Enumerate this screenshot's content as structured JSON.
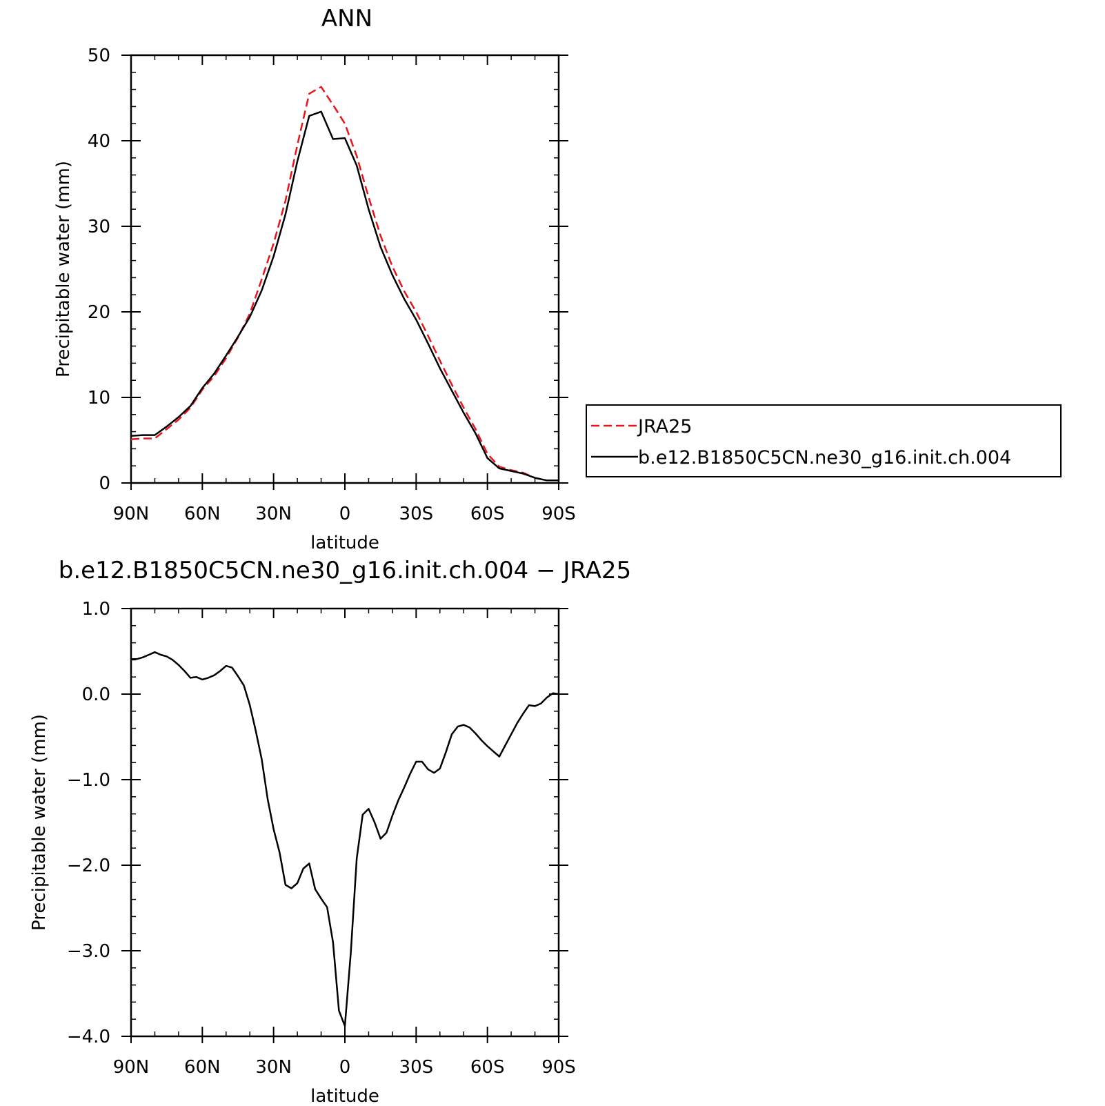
{
  "chart_data": [
    {
      "type": "line",
      "title": "ANN",
      "xlabel": "latitude",
      "ylabel": "Precipitable water (mm)",
      "xlim": [
        90,
        -90
      ],
      "ylim": [
        0,
        50
      ],
      "x_ticks": [
        90,
        60,
        30,
        0,
        -30,
        -60,
        -90
      ],
      "x_tick_labels": [
        "90N",
        "60N",
        "30N",
        "0",
        "30S",
        "60S",
        "90S"
      ],
      "y_ticks": [
        0,
        10,
        20,
        30,
        40,
        50
      ],
      "y_tick_labels": [
        "0",
        "10",
        "20",
        "30",
        "40",
        "50"
      ],
      "legend_position": "right",
      "series": [
        {
          "name": "JRA25",
          "color": "#e8141b",
          "dash": "dashed",
          "x": [
            90,
            85,
            80,
            75,
            70,
            65,
            60,
            55,
            50,
            45,
            40,
            35,
            30,
            25,
            20,
            15,
            10,
            5,
            0,
            -5,
            -10,
            -15,
            -20,
            -25,
            -30,
            -35,
            -40,
            -45,
            -50,
            -55,
            -60,
            -65,
            -70,
            -75,
            -80,
            -85,
            -90
          ],
          "values": [
            5.1,
            5.2,
            5.2,
            6.3,
            7.4,
            8.8,
            10.9,
            12.5,
            14.6,
            17.0,
            19.8,
            23.8,
            28.0,
            33.0,
            39.5,
            45.5,
            46.3,
            44.2,
            42.0,
            38.2,
            33.4,
            28.9,
            25.3,
            22.4,
            20.0,
            17.2,
            14.3,
            11.5,
            8.8,
            6.3,
            3.4,
            1.9,
            1.5,
            1.2,
            0.6,
            0.3,
            0.3
          ]
        },
        {
          "name": "b.e12.B1850C5CN.ne30_g16.init.ch.004",
          "color": "#000000",
          "dash": "solid",
          "x": [
            90,
            85,
            80,
            75,
            70,
            65,
            60,
            55,
            50,
            45,
            40,
            35,
            30,
            25,
            20,
            15,
            10,
            5,
            0,
            -5,
            -10,
            -15,
            -20,
            -25,
            -30,
            -35,
            -40,
            -45,
            -50,
            -55,
            -60,
            -65,
            -70,
            -75,
            -80,
            -85,
            -90
          ],
          "values": [
            5.5,
            5.6,
            5.6,
            6.6,
            7.7,
            9.0,
            11.1,
            12.8,
            14.9,
            17.1,
            19.4,
            22.5,
            26.5,
            31.4,
            37.6,
            42.9,
            43.4,
            40.2,
            40.3,
            37.1,
            32.0,
            27.6,
            24.3,
            21.5,
            19.1,
            16.3,
            13.4,
            10.8,
            8.2,
            5.8,
            2.9,
            1.7,
            1.4,
            1.1,
            0.6,
            0.3,
            0.3
          ]
        }
      ]
    },
    {
      "type": "line",
      "title": "b.e12.B1850C5CN.ne30_g16.init.ch.004 − JRA25",
      "xlabel": "latitude",
      "ylabel": "Precipitable water (mm)",
      "xlim": [
        90,
        -90
      ],
      "ylim": [
        -4.0,
        1.0
      ],
      "x_ticks": [
        90,
        60,
        30,
        0,
        -30,
        -60,
        -90
      ],
      "x_tick_labels": [
        "90N",
        "60N",
        "30N",
        "0",
        "30S",
        "60S",
        "90S"
      ],
      "y_ticks": [
        1.0,
        0.0,
        -1.0,
        -2.0,
        -3.0,
        -4.0
      ],
      "y_tick_labels": [
        "1.0",
        "0.0",
        "−1.0",
        "−2.0",
        "−3.0",
        "−4.0"
      ],
      "series": [
        {
          "name": "",
          "color": "#000000",
          "dash": "solid",
          "x": [
            90,
            87.5,
            85,
            82.5,
            80,
            77.5,
            75,
            72.5,
            70,
            67.5,
            65,
            62.5,
            60,
            57.5,
            55,
            52.5,
            50,
            47.5,
            45,
            42.5,
            40,
            37.5,
            35,
            32.5,
            30,
            27.5,
            25,
            22.5,
            20,
            17.5,
            15,
            12.5,
            10,
            7.5,
            5,
            2.5,
            0,
            -2.5,
            -5,
            -7.5,
            -10,
            -12.5,
            -15,
            -17.5,
            -20,
            -22.5,
            -25,
            -27.5,
            -30,
            -32.5,
            -35,
            -37.5,
            -40,
            -42.5,
            -45,
            -47.5,
            -50,
            -52.5,
            -55,
            -57.5,
            -60,
            -62.5,
            -65,
            -67.5,
            -70,
            -72.5,
            -75,
            -77.5,
            -80,
            -82.5,
            -85,
            -87.5,
            -90
          ],
          "values": [
            0.41,
            0.41,
            0.43,
            0.46,
            0.49,
            0.46,
            0.44,
            0.4,
            0.34,
            0.27,
            0.19,
            0.2,
            0.17,
            0.19,
            0.22,
            0.27,
            0.33,
            0.31,
            0.21,
            0.1,
            -0.13,
            -0.43,
            -0.76,
            -1.23,
            -1.58,
            -1.85,
            -2.23,
            -2.27,
            -2.21,
            -2.04,
            -1.98,
            -2.28,
            -2.39,
            -2.49,
            -2.9,
            -3.7,
            -3.88,
            -3.02,
            -1.92,
            -1.41,
            -1.34,
            -1.5,
            -1.69,
            -1.62,
            -1.42,
            -1.24,
            -1.09,
            -0.93,
            -0.79,
            -0.79,
            -0.88,
            -0.92,
            -0.87,
            -0.68,
            -0.47,
            -0.38,
            -0.36,
            -0.39,
            -0.46,
            -0.54,
            -0.61,
            -0.67,
            -0.73,
            -0.6,
            -0.47,
            -0.34,
            -0.23,
            -0.13,
            -0.14,
            -0.11,
            -0.04,
            0.01,
            0.0
          ]
        }
      ]
    }
  ]
}
